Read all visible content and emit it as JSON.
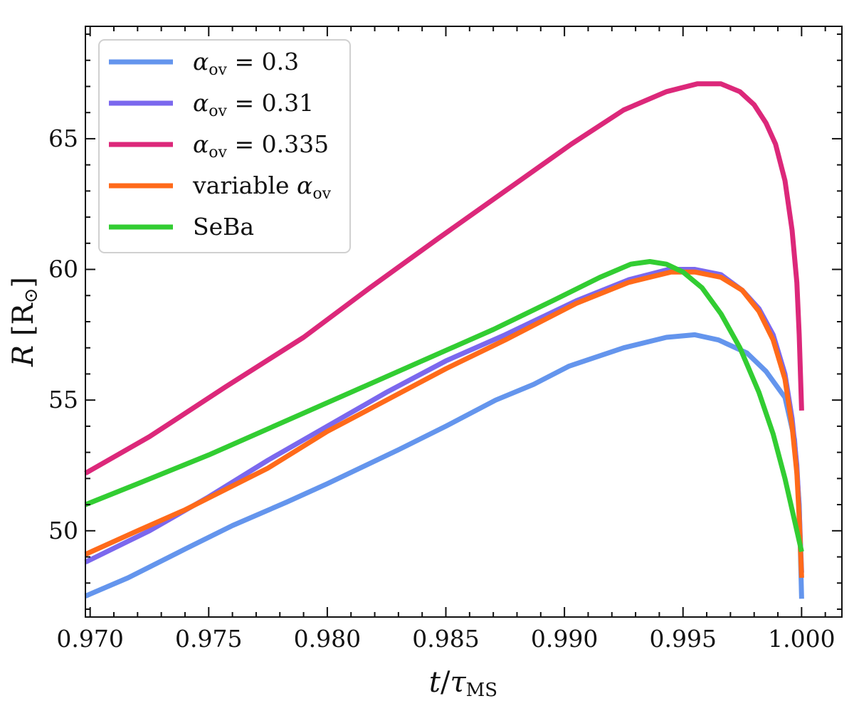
{
  "chart_data": {
    "type": "line",
    "title": "",
    "xlabel": "t/τMS",
    "ylabel": "R [R⊙]",
    "xlim": [
      0.9698,
      1.0017
    ],
    "ylim": [
      46.7,
      69.3
    ],
    "xticks": [
      0.97,
      0.975,
      0.98,
      0.985,
      0.99,
      0.995,
      1.0
    ],
    "xtick_labels": [
      "0.970",
      "0.975",
      "0.980",
      "0.985",
      "0.990",
      "0.995",
      "1.000"
    ],
    "yticks": [
      50,
      55,
      60,
      65
    ],
    "ytick_labels": [
      "50",
      "55",
      "60",
      "65"
    ],
    "legend_position": "top-left",
    "series": [
      {
        "name": "αov = 0.3",
        "legend": {
          "base": "α",
          "sub": "ov",
          "rest": " = 0.3"
        },
        "color": "#6495ED",
        "x": [
          0.9698,
          0.9716,
          0.974,
          0.976,
          0.9783,
          0.98,
          0.983,
          0.985,
          0.9871,
          0.9887,
          0.9902,
          0.9925,
          0.9943,
          0.9955,
          0.9965,
          0.9977,
          0.9985,
          0.9993,
          0.9997,
          0.9999,
          1.0
        ],
        "y": [
          47.5,
          48.2,
          49.3,
          50.2,
          51.1,
          51.8,
          53.1,
          54.0,
          55.0,
          55.6,
          56.3,
          57.0,
          57.4,
          57.5,
          57.3,
          56.8,
          56.1,
          55.1,
          53.5,
          51.0,
          47.4
        ]
      },
      {
        "name": "αov = 0.31",
        "legend": {
          "base": "α",
          "sub": "ov",
          "rest": " = 0.31"
        },
        "color": "#7B68EE",
        "x": [
          0.9698,
          0.9725,
          0.975,
          0.9775,
          0.98,
          0.9825,
          0.985,
          0.9875,
          0.9905,
          0.9927,
          0.9944,
          0.9955,
          0.9966,
          0.9975,
          0.9982,
          0.9988,
          0.9993,
          0.9996,
          0.9998,
          0.9999,
          1.0
        ],
        "y": [
          48.8,
          50.0,
          51.3,
          52.7,
          54.0,
          55.3,
          56.5,
          57.5,
          58.8,
          59.6,
          60.0,
          60.0,
          59.8,
          59.2,
          58.5,
          57.5,
          56.0,
          54.3,
          52.5,
          50.8,
          48.4
        ]
      },
      {
        "name": "αov = 0.335",
        "legend": {
          "base": "α",
          "sub": "ov",
          "rest": " = 0.335"
        },
        "color": "#DC287A",
        "x": [
          0.9698,
          0.9725,
          0.9757,
          0.979,
          0.9818,
          0.9847,
          0.9875,
          0.9903,
          0.9925,
          0.9943,
          0.9956,
          0.9966,
          0.9974,
          0.998,
          0.9985,
          0.9989,
          0.9993,
          0.9996,
          0.9998,
          0.9999,
          1.0
        ],
        "y": [
          52.2,
          53.6,
          55.5,
          57.4,
          59.3,
          61.2,
          63.0,
          64.8,
          66.1,
          66.8,
          67.1,
          67.1,
          66.8,
          66.3,
          65.6,
          64.8,
          63.4,
          61.5,
          59.5,
          57.5,
          54.6
        ]
      },
      {
        "name": "variable αov",
        "legend": {
          "base": "variable α",
          "sub": "ov",
          "rest": ""
        },
        "color": "#FF6A1A",
        "x": [
          0.9698,
          0.972,
          0.974,
          0.9775,
          0.98,
          0.9825,
          0.985,
          0.9875,
          0.9905,
          0.9927,
          0.9945,
          0.9955,
          0.9966,
          0.9975,
          0.9982,
          0.9988,
          0.9993,
          0.9996,
          0.9998,
          0.9999,
          1.0
        ],
        "y": [
          49.1,
          50.0,
          50.8,
          52.4,
          53.8,
          55.0,
          56.2,
          57.3,
          58.7,
          59.5,
          59.9,
          59.9,
          59.7,
          59.2,
          58.4,
          57.3,
          55.8,
          54.0,
          52.2,
          50.5,
          48.2
        ]
      },
      {
        "name": "SeBa",
        "legend": {
          "base": "SeBa",
          "sub": "",
          "rest": ""
        },
        "color": "#32CD32",
        "x": [
          0.9698,
          0.972,
          0.975,
          0.978,
          0.981,
          0.984,
          0.987,
          0.9895,
          0.9915,
          0.9928,
          0.9936,
          0.9943,
          0.995,
          0.9958,
          0.9966,
          0.9974,
          0.9982,
          0.9988,
          0.9993,
          0.9997,
          1.0
        ],
        "y": [
          51.0,
          51.8,
          52.9,
          54.1,
          55.3,
          56.5,
          57.7,
          58.8,
          59.7,
          60.2,
          60.3,
          60.2,
          59.9,
          59.3,
          58.3,
          57.0,
          55.3,
          53.7,
          52.0,
          50.4,
          49.2
        ]
      }
    ]
  }
}
